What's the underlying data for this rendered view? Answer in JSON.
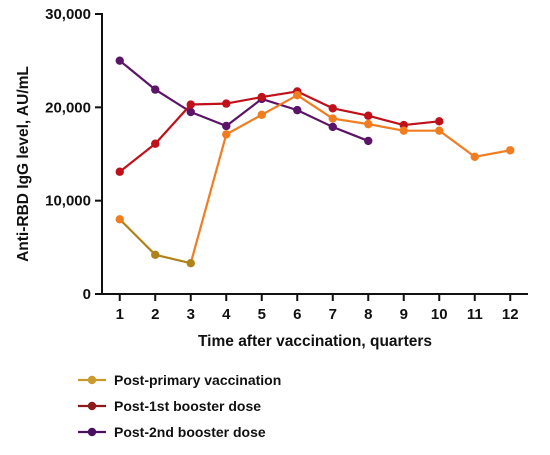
{
  "chart_data": {
    "type": "line",
    "title": "",
    "xlabel": "Time after vaccination, quarters",
    "ylabel": "Anti-RBD IgG level, AU/mL",
    "x": [
      1,
      2,
      3,
      4,
      5,
      6,
      7,
      8,
      9,
      10,
      11,
      12
    ],
    "xlim": [
      0.5,
      12.5
    ],
    "ylim": [
      0,
      30000
    ],
    "yticks": [
      0,
      10000,
      20000,
      30000
    ],
    "ytick_labels": [
      "0",
      "10,000",
      "20,000",
      "30,000"
    ],
    "xtick_labels": [
      "1",
      "2",
      "3",
      "4",
      "5",
      "6",
      "7",
      "8",
      "9",
      "10",
      "11",
      "12"
    ],
    "grid": false,
    "legend_position": "bottom-left",
    "series": [
      {
        "name": "Post-primary vaccination",
        "color": "#f07d20",
        "segment_colors": [
          "#b0821a",
          "#b0821a",
          "#f07d20",
          "#f07d20",
          "#f07d20",
          "#f07d20",
          "#f07d20",
          "#f07d20",
          "#f07d20",
          "#f07d20",
          "#f07d20"
        ],
        "marker_colors": [
          "#f07d20",
          "#b0821a",
          "#b0821a",
          "#f07d20",
          "#f07d20",
          "#f07d20",
          "#f07d20",
          "#f07d20",
          "#f07d20",
          "#f07d20",
          "#f07d20",
          "#f07d20"
        ],
        "legend_color": "#c99a2e",
        "x": [
          1,
          2,
          3,
          4,
          5,
          6,
          7,
          8,
          9,
          10,
          11,
          12
        ],
        "values": [
          8000,
          4200,
          3300,
          17100,
          19200,
          21300,
          18800,
          18200,
          17500,
          17500,
          14700,
          15400
        ]
      },
      {
        "name": "Post-1st booster dose",
        "color": "#c0101a",
        "legend_color": "#8b1a1a",
        "x": [
          1,
          2,
          3,
          4,
          5,
          6,
          7,
          8,
          9,
          10
        ],
        "values": [
          13100,
          16100,
          20300,
          20400,
          21100,
          21700,
          19900,
          19100,
          18100,
          18500
        ]
      },
      {
        "name": "Post-2nd booster dose",
        "color": "#5b1468",
        "legend_color": "#4a1060",
        "x": [
          1,
          2,
          3,
          4,
          5,
          6,
          7,
          8
        ],
        "values": [
          25000,
          21900,
          19500,
          18000,
          20900,
          19700,
          17900,
          16400
        ]
      }
    ]
  }
}
